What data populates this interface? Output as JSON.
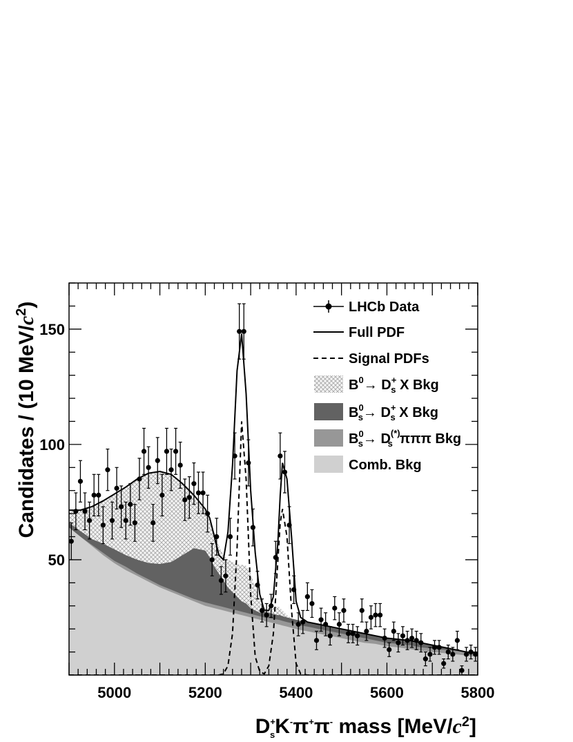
{
  "chart_data": {
    "type": "scatter",
    "xlabel": "D_s^+ K^- π^+ π^- mass [MeV/c^2]",
    "ylabel": "Candidates / (10 MeV/c^2)",
    "xlim": [
      4900,
      5800
    ],
    "ylim": [
      0,
      170
    ],
    "x_ticks": [
      5000,
      5200,
      5400,
      5600,
      5800
    ],
    "y_ticks": [
      50,
      100,
      150
    ],
    "x_tick_labels": [
      "5000",
      "5200",
      "5400",
      "5600",
      "5800"
    ],
    "y_tick_labels": [
      "50",
      "100",
      "150"
    ],
    "legend_position": "top-right",
    "legend": [
      {
        "key": "data",
        "label": "LHCb Data"
      },
      {
        "key": "full",
        "label": "Full PDF"
      },
      {
        "key": "signal",
        "label": "Signal PDFs"
      },
      {
        "key": "b0",
        "label": "B0→ Ds+ X Bkg"
      },
      {
        "key": "bs",
        "label": "Bs0→ Ds+ X Bkg"
      },
      {
        "key": "bspipipi",
        "label": "Bs0→ Ds(*)πππ Bkg"
      },
      {
        "key": "comb",
        "label": "Comb. Bkg"
      }
    ],
    "x_data": [
      4905,
      4915,
      4925,
      4935,
      4945,
      4955,
      4965,
      4975,
      4985,
      4995,
      5005,
      5015,
      5025,
      5035,
      5045,
      5055,
      5065,
      5075,
      5085,
      5095,
      5105,
      5115,
      5125,
      5135,
      5145,
      5155,
      5165,
      5175,
      5185,
      5195,
      5205,
      5215,
      5225,
      5235,
      5245,
      5255,
      5265,
      5275,
      5285,
      5295,
      5305,
      5315,
      5325,
      5335,
      5345,
      5355,
      5365,
      5375,
      5385,
      5395,
      5405,
      5415,
      5425,
      5435,
      5445,
      5455,
      5465,
      5475,
      5485,
      5495,
      5505,
      5515,
      5525,
      5535,
      5545,
      5555,
      5565,
      5575,
      5585,
      5595,
      5605,
      5615,
      5625,
      5635,
      5645,
      5655,
      5665,
      5675,
      5685,
      5695,
      5705,
      5715,
      5725,
      5735,
      5745,
      5755,
      5765,
      5775,
      5785,
      5795
    ],
    "data_points": [
      58,
      71,
      84,
      71,
      67,
      78,
      78,
      65,
      89,
      67,
      81,
      73,
      67,
      74,
      66,
      85,
      97,
      90,
      66,
      93,
      78,
      97,
      89,
      97,
      91,
      76,
      77,
      83,
      79,
      79,
      70,
      50,
      60,
      41,
      43,
      60,
      95,
      149,
      149,
      92,
      64,
      39,
      28,
      26,
      30,
      51,
      95,
      88,
      65,
      37,
      22,
      23,
      34,
      31,
      15,
      24,
      22,
      17,
      29,
      22,
      28,
      18,
      18,
      17,
      28,
      19,
      25,
      26,
      26,
      16,
      11,
      19,
      14,
      17,
      15,
      16,
      15,
      14,
      7,
      9,
      12,
      12,
      5,
      10,
      9,
      15,
      2,
      9,
      10,
      9
    ],
    "data_errors": [
      8,
      8,
      9,
      8,
      8,
      9,
      9,
      8,
      9,
      8,
      9,
      9,
      8,
      9,
      8,
      9,
      10,
      9,
      8,
      10,
      9,
      10,
      9,
      10,
      10,
      9,
      9,
      9,
      9,
      9,
      8,
      7,
      8,
      6,
      7,
      8,
      10,
      12,
      12,
      10,
      8,
      6,
      5,
      5,
      5,
      7,
      10,
      9,
      8,
      6,
      5,
      5,
      6,
      6,
      4,
      5,
      5,
      4,
      5,
      5,
      5,
      4,
      4,
      4,
      5,
      4,
      5,
      5,
      5,
      4,
      3,
      4,
      4,
      4,
      4,
      4,
      4,
      4,
      3,
      3,
      3,
      3,
      2,
      3,
      3,
      4,
      2,
      3,
      3,
      3
    ],
    "curve_x": [
      4900,
      4925,
      4950,
      4975,
      5000,
      5025,
      5050,
      5075,
      5100,
      5125,
      5150,
      5175,
      5200,
      5210,
      5220,
      5230,
      5240,
      5250,
      5260,
      5270,
      5280,
      5290,
      5300,
      5310,
      5320,
      5330,
      5340,
      5350,
      5360,
      5365,
      5370,
      5380,
      5390,
      5400,
      5410,
      5425,
      5450,
      5475,
      5500,
      5525,
      5550,
      5575,
      5600,
      5625,
      5650,
      5675,
      5700,
      5725,
      5750,
      5775,
      5800
    ],
    "full_pdf": [
      71.5,
      71.5,
      73,
      75.5,
      78.5,
      81.5,
      85,
      87.5,
      88.3,
      87,
      83,
      78,
      72,
      68,
      60,
      52,
      50,
      62,
      91,
      132,
      148,
      122,
      80,
      53,
      35,
      28,
      28,
      34,
      58,
      78,
      92,
      85,
      60,
      32,
      25,
      23,
      22,
      21,
      20,
      19,
      18,
      17,
      16,
      15.5,
      15,
      14,
      13,
      12,
      11,
      10,
      9.5
    ],
    "signal_pdf": [
      0,
      0,
      0,
      0,
      0,
      0,
      0,
      0,
      0,
      0,
      0,
      0,
      0,
      0,
      0,
      0,
      0.5,
      4,
      18,
      55,
      110,
      85,
      35,
      8,
      1.5,
      0.5,
      4,
      18,
      50,
      66,
      72,
      60,
      28,
      5,
      0.5,
      0,
      0,
      0,
      0,
      0,
      0,
      0,
      0,
      0,
      0,
      0,
      0,
      0,
      0,
      0,
      0
    ],
    "bkg_b0_top": [
      71.5,
      71.5,
      73,
      75.5,
      78.5,
      81.5,
      85,
      87.5,
      88.3,
      87,
      83,
      78,
      72,
      68,
      62,
      56,
      52,
      50,
      49,
      48,
      47.8,
      47.4,
      44,
      38,
      33,
      29,
      28,
      29,
      30,
      29,
      28,
      26,
      24.5,
      23.5,
      23,
      22.7,
      22,
      21,
      20,
      19,
      18,
      17,
      16,
      15.5,
      15,
      14,
      13,
      12,
      11,
      10,
      9.5
    ],
    "bkg_bs_top": [
      66,
      62.5,
      59,
      57,
      54.5,
      52,
      50,
      48.6,
      48.2,
      49,
      52,
      55,
      54,
      51,
      47,
      44,
      41,
      38,
      36,
      34,
      32,
      31,
      29,
      28,
      27,
      27.5,
      27,
      26.5,
      26,
      26,
      25.5,
      25,
      24.5,
      24,
      23.5,
      23,
      22,
      21,
      20,
      19,
      18,
      17,
      16,
      15.5,
      15,
      14,
      13,
      12,
      11,
      10,
      9.5
    ],
    "bkg_bspipipi_top": [
      64,
      60,
      56.5,
      53,
      49.5,
      47,
      44,
      41.5,
      39,
      37,
      35,
      33,
      31.5,
      31,
      30.5,
      30,
      29.5,
      29,
      28.5,
      28,
      27.5,
      27,
      26.5,
      26,
      25.5,
      25,
      24.7,
      24.3,
      24,
      23.8,
      23.5,
      23,
      22.5,
      22,
      21.5,
      21,
      20,
      19,
      18,
      17,
      16,
      15,
      14,
      13.5,
      13,
      12,
      11.5,
      11,
      10.5,
      10,
      9.5
    ],
    "bkg_comb_top": [
      64,
      60,
      56,
      52,
      48.5,
      45.5,
      43,
      40.5,
      38,
      36,
      34,
      32,
      30,
      29.5,
      29,
      28.5,
      28,
      27.5,
      27,
      26.5,
      26,
      25.5,
      25,
      24.5,
      24,
      23.5,
      23,
      22.5,
      22,
      21.8,
      21.5,
      21,
      20.5,
      20,
      19.5,
      19,
      18,
      17,
      16,
      15,
      14,
      13.5,
      12.5,
      12,
      11.3,
      10.5,
      10,
      9.5,
      9,
      8.5,
      8
    ],
    "colors": {
      "b0": "#f1f1f1",
      "bs": "#626262",
      "bspipipi": "#979797",
      "comb": "#d0d0d0",
      "frame": "#000000"
    }
  }
}
